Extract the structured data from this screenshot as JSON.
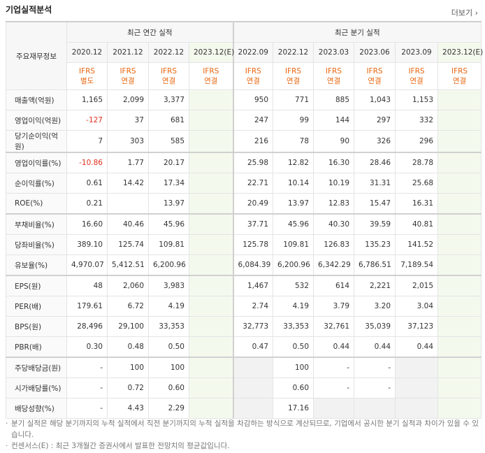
{
  "header": {
    "title": "기업실적분석",
    "more": "더보기"
  },
  "table": {
    "corner": "주요재무정보",
    "annual_label": "최근 연간 실적",
    "quarter_label": "최근 분기 실적",
    "periods": [
      "2020.12",
      "2021.12",
      "2022.12",
      "2023.12(E)",
      "2022.09",
      "2022.12",
      "2023.03",
      "2023.06",
      "2023.09",
      "2023.12(E)"
    ],
    "ifrs": [
      [
        "IFRS",
        "별도"
      ],
      [
        "IFRS",
        "연결"
      ],
      [
        "IFRS",
        "연결"
      ],
      [
        "IFRS",
        "연결"
      ],
      [
        "IFRS",
        "연결"
      ],
      [
        "IFRS",
        "연결"
      ],
      [
        "IFRS",
        "연결"
      ],
      [
        "IFRS",
        "연결"
      ],
      [
        "IFRS",
        "연결"
      ],
      [
        "IFRS",
        "연결"
      ]
    ],
    "rows": [
      {
        "label": "매출액(억원)",
        "values": [
          "1,165",
          "2,099",
          "3,377",
          null,
          "950",
          "771",
          "885",
          "1,043",
          "1,153",
          null
        ]
      },
      {
        "label": "영업이익(억원)",
        "values": [
          "-127",
          "37",
          "681",
          null,
          "247",
          "99",
          "144",
          "297",
          "332",
          null
        ]
      },
      {
        "label": "당기순이익(억원)",
        "values": [
          "7",
          "303",
          "585",
          null,
          "216",
          "78",
          "90",
          "326",
          "296",
          null
        ]
      },
      {
        "label": "영업이익률(%)",
        "values": [
          "-10.86",
          "1.77",
          "20.17",
          null,
          "25.98",
          "12.82",
          "16.30",
          "28.46",
          "28.78",
          null
        ]
      },
      {
        "label": "순이익률(%)",
        "values": [
          "0.61",
          "14.42",
          "17.34",
          null,
          "22.71",
          "10.14",
          "10.19",
          "31.31",
          "25.68",
          null
        ]
      },
      {
        "label": "ROE(%)",
        "values": [
          "0.21",
          null,
          "13.97",
          null,
          "20.49",
          "13.97",
          "12.83",
          "15.47",
          "16.31",
          null
        ]
      },
      {
        "label": "부채비율(%)",
        "values": [
          "16.60",
          "40.46",
          "45.96",
          null,
          "37.71",
          "45.96",
          "40.30",
          "39.59",
          "40.81",
          null
        ]
      },
      {
        "label": "당좌비율(%)",
        "values": [
          "389.10",
          "125.74",
          "109.81",
          null,
          "125.78",
          "109.81",
          "126.83",
          "135.23",
          "141.52",
          null
        ]
      },
      {
        "label": "유보율(%)",
        "values": [
          "4,970.07",
          "5,412.51",
          "6,200.96",
          null,
          "6,084.39",
          "6,200.96",
          "6,342.29",
          "6,786.51",
          "7,189.54",
          null
        ]
      },
      {
        "label": "EPS(원)",
        "values": [
          "48",
          "2,060",
          "3,983",
          null,
          "1,467",
          "532",
          "614",
          "2,221",
          "2,015",
          null
        ]
      },
      {
        "label": "PER(배)",
        "values": [
          "179.61",
          "6.72",
          "4.19",
          null,
          "2.74",
          "4.19",
          "3.79",
          "3.20",
          "3.04",
          null
        ]
      },
      {
        "label": "BPS(원)",
        "values": [
          "28,496",
          "29,100",
          "33,353",
          null,
          "32,773",
          "33,353",
          "32,761",
          "35,039",
          "37,123",
          null
        ]
      },
      {
        "label": "PBR(배)",
        "values": [
          "0.30",
          "0.48",
          "0.50",
          null,
          "0.47",
          "0.50",
          "0.44",
          "0.44",
          "0.44",
          null
        ]
      },
      {
        "label": "주당배당금(원)",
        "values": [
          "-",
          "100",
          "100",
          null,
          null,
          "100",
          "-",
          "-",
          null,
          null
        ]
      },
      {
        "label": "시가배당률(%)",
        "values": [
          "-",
          "0.72",
          "0.60",
          null,
          null,
          "0.60",
          "-",
          "-",
          null,
          null
        ]
      },
      {
        "label": "배당성향(%)",
        "values": [
          "-",
          "4.43",
          "2.29",
          null,
          null,
          "17.16",
          null,
          null,
          null,
          null
        ]
      }
    ]
  },
  "notes": [
    "분기 실적은 해당 분기까지의 누적 실적에서 직전 분기까지의 누적 실적을 차감하는 방식으로 계산되므로, 기업에서 공시한 분기 실적과 차이가 있을 수 있습니다.",
    "컨센서스(E) : 최근 3개월간 증권사에서 발표한 전망치의 평균값입니다."
  ]
}
